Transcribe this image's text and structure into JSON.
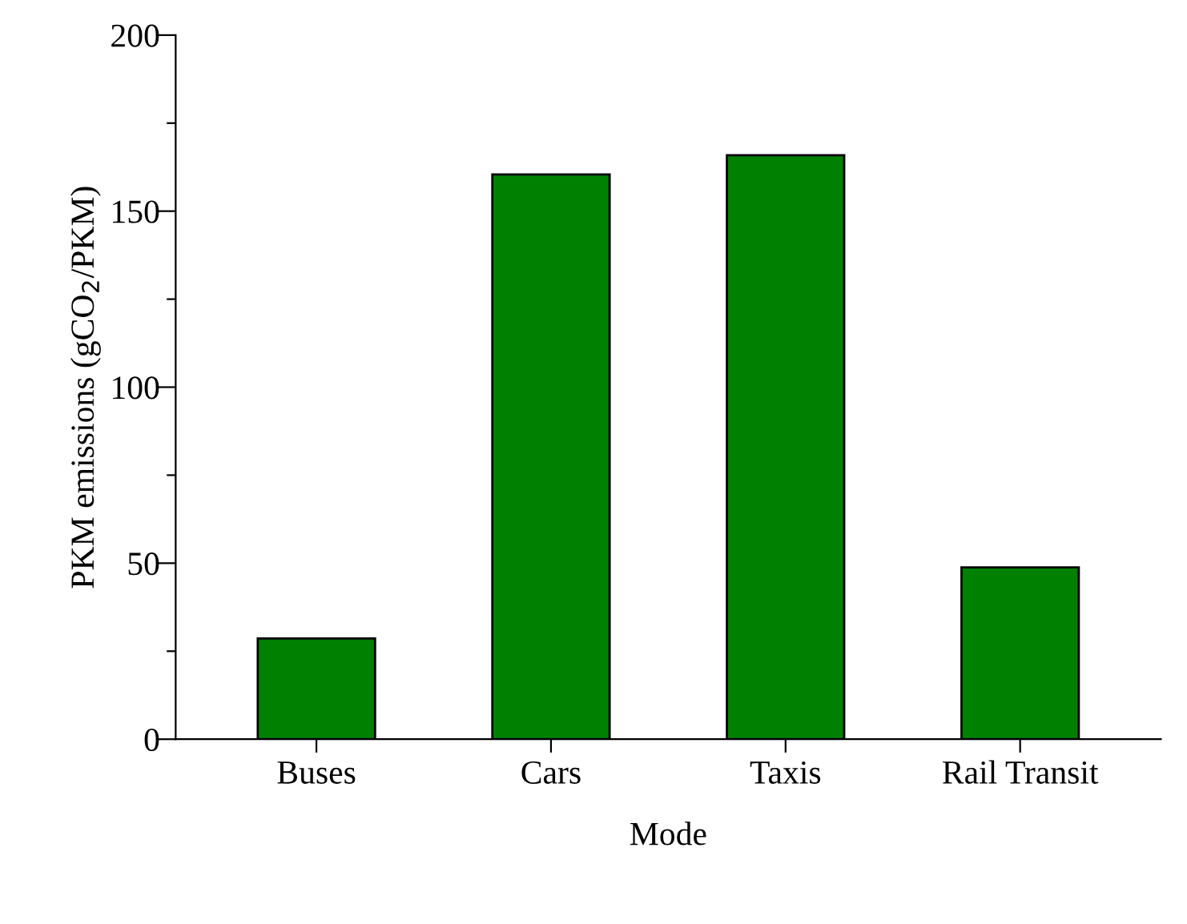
{
  "chart_data": {
    "type": "bar",
    "xlabel": "Mode",
    "ylabel": "PKM emissions (gCO$_{2}$/PKM)",
    "categories": [
      "Buses",
      "Cars",
      "Taxis",
      "Rail Transit"
    ],
    "values": [
      28.6,
      160.4,
      165.9,
      48.8
    ],
    "color": "#008000",
    "ylim": [
      0,
      200
    ],
    "yticks": [
      0,
      {
        "value": 25,
        "label": null
      },
      50,
      {
        "value": 75,
        "label": null
      },
      100,
      {
        "value": 125,
        "label": null
      },
      150,
      {
        "value": 175,
        "label": null
      },
      200
    ],
    "grid": false,
    "legend": false
  }
}
